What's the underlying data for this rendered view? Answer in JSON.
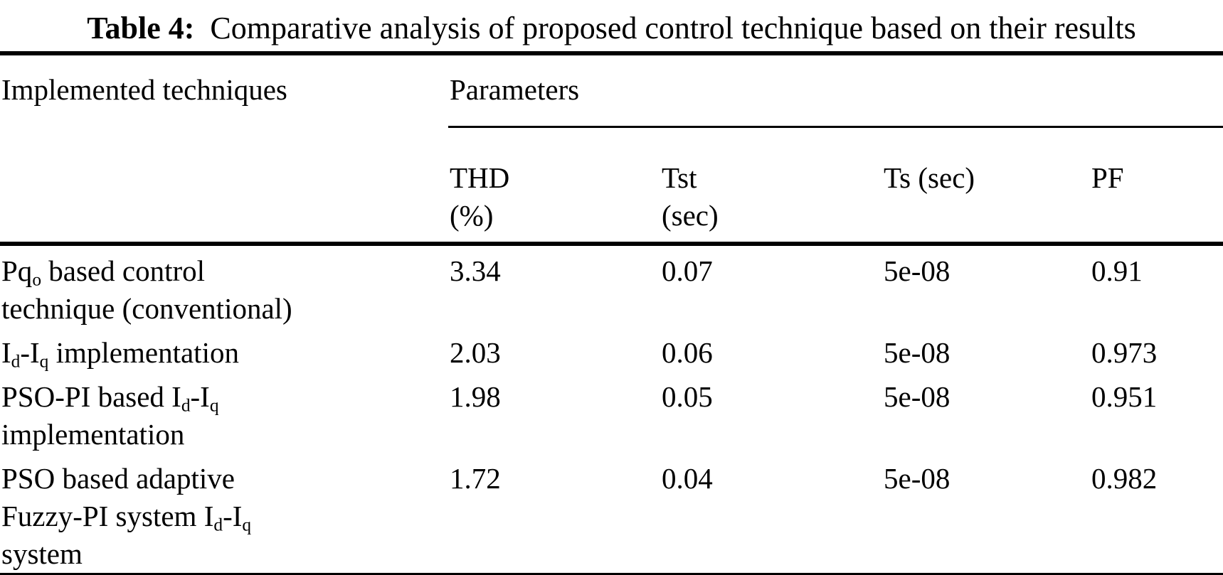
{
  "title": {
    "label": "Table 4:",
    "text": "Comparative analysis of proposed control technique based on their results"
  },
  "table": {
    "group_header": {
      "techniques": "Implemented techniques",
      "parameters": "Parameters"
    },
    "columns": [
      {
        "name": "THD (%)",
        "html": "THD<br>(%)"
      },
      {
        "name": "Tst (sec)",
        "html": "Tst<br>(sec)"
      },
      {
        "name": "Ts (sec)",
        "html": "Ts (sec)"
      },
      {
        "name": "PF",
        "html": "PF"
      }
    ],
    "rows": [
      {
        "technique_text": "Pqo based control technique (conventional)",
        "technique_html": "Pq<sub>o</sub> based control<br>technique (conventional)",
        "thd": "3.34",
        "tst": "0.07",
        "ts": "5e-08",
        "pf": "0.91"
      },
      {
        "technique_text": "Id-Iq implementation",
        "technique_html": "I<sub>d</sub>-I<sub>q</sub> implementation",
        "thd": "2.03",
        "tst": "0.06",
        "ts": "5e-08",
        "pf": "0.973"
      },
      {
        "technique_text": "PSO-PI based Id-Iq implementation",
        "technique_html": "PSO-PI based I<sub>d</sub>-I<sub>q</sub><br>implementation",
        "thd": "1.98",
        "tst": "0.05",
        "ts": "5e-08",
        "pf": "0.951"
      },
      {
        "technique_text": "PSO based adaptive Fuzzy-PI system Id-Iq system",
        "technique_html": "PSO based adaptive<br>Fuzzy-PI system I<sub>d</sub>-I<sub>q</sub><br>system",
        "thd": "1.72",
        "tst": "0.04",
        "ts": "5e-08",
        "pf": "0.982"
      }
    ]
  },
  "colors": {
    "text": "#000000",
    "background": "#ffffff",
    "rule": "#000000"
  }
}
